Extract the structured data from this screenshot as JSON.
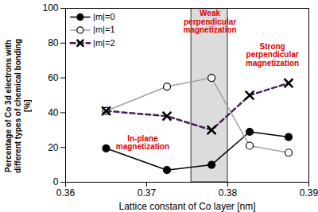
{
  "chart_data": {
    "type": "line",
    "x_label": "Lattice constant of Co layer [nm]",
    "y_label": "Percentage of Co 3d electrons with\ndifferent types of chemical bonding\n[%]",
    "x": [
      0.365,
      0.3725,
      0.378,
      0.3827,
      0.3875
    ],
    "series": [
      {
        "name": "|m|=0",
        "color": "#000000",
        "marker": "circle",
        "line_style": "solid",
        "values": [
          19.5,
          7,
          10,
          29,
          26
        ]
      },
      {
        "name": "|m|=1",
        "color": "#a0a0a0",
        "marker": "circle-open",
        "line_style": "solid",
        "values": [
          41,
          55,
          60,
          21,
          17
        ]
      },
      {
        "name": "|m|=2",
        "color": "#4b1f5a",
        "marker": "cross",
        "line_style": "dashed",
        "values": [
          41,
          38,
          30,
          50,
          57
        ]
      }
    ],
    "xlim": [
      0.36,
      0.39
    ],
    "xticks": [
      0.36,
      0.37,
      0.38,
      0.39
    ],
    "ylim": [
      0,
      100
    ],
    "yticks": [
      0,
      20,
      40,
      60,
      80,
      100
    ],
    "legend": "upper left",
    "shaded_x": [
      0.3755,
      0.38
    ],
    "annotations": [
      {
        "text": "Weak\nperpendicular\nmagnetization",
        "x": 0.3778,
        "y": 99
      },
      {
        "text": "Strong\nperpendicular\nmagnetization",
        "x": 0.3855,
        "y": 80
      },
      {
        "text": "In-plane\nmagnetization",
        "x": 0.3695,
        "y": 27
      }
    ]
  }
}
